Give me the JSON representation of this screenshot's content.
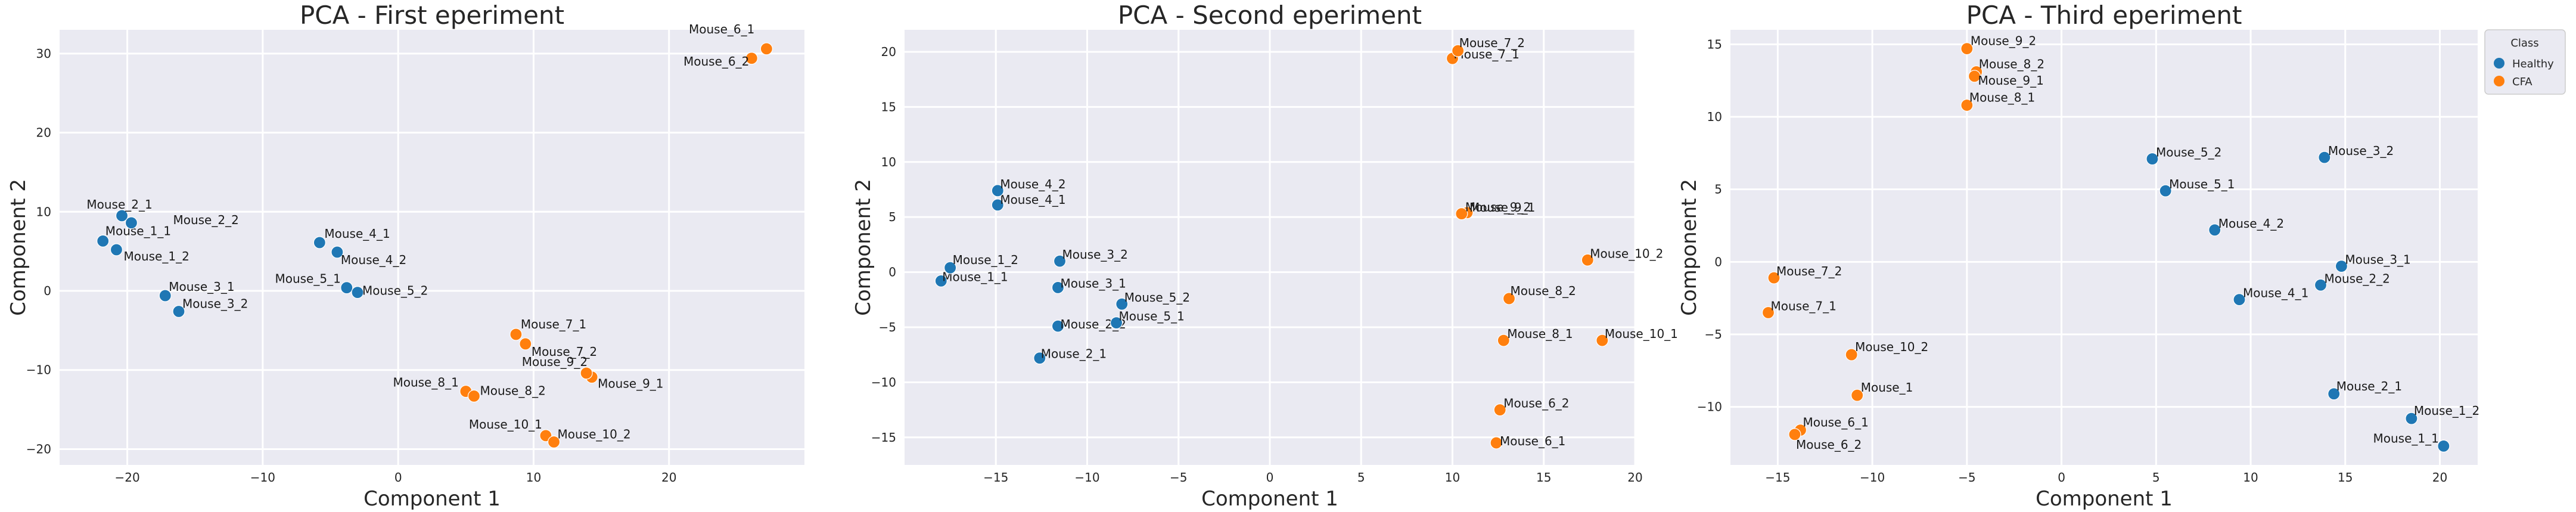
{
  "colors": {
    "Healthy": "#1f77b4",
    "CFA": "#ff7f0e"
  },
  "legend": {
    "title": "Class",
    "entries": [
      "Healthy",
      "CFA"
    ]
  },
  "chart_data": [
    {
      "type": "scatter",
      "title": "PCA - First eperiment",
      "xlabel": "Component 1",
      "ylabel": "Component 2",
      "xlim": [
        -25,
        30
      ],
      "ylim": [
        -22,
        33
      ],
      "xticks": [
        -20,
        -10,
        0,
        10,
        20
      ],
      "yticks": [
        -20,
        -10,
        0,
        10,
        20,
        30
      ],
      "points": [
        {
          "label": "Mouse_1_1",
          "x": -21.8,
          "y": 6.3,
          "class": "Healthy"
        },
        {
          "label": "Mouse_1_2",
          "x": -20.8,
          "y": 5.2,
          "class": "Healthy"
        },
        {
          "label": "Mouse_2_1",
          "x": -20.4,
          "y": 9.5,
          "class": "Healthy"
        },
        {
          "label": "Mouse_2_2",
          "x": -19.7,
          "y": 8.6,
          "class": "Healthy"
        },
        {
          "label": "Mouse_3_1",
          "x": -17.2,
          "y": -0.6,
          "class": "Healthy"
        },
        {
          "label": "Mouse_3_2",
          "x": -16.2,
          "y": -2.6,
          "class": "Healthy"
        },
        {
          "label": "Mouse_4_1",
          "x": -5.8,
          "y": 6.1,
          "class": "Healthy"
        },
        {
          "label": "Mouse_4_2",
          "x": -4.5,
          "y": 4.9,
          "class": "Healthy"
        },
        {
          "label": "Mouse_5_1",
          "x": -3.8,
          "y": 0.4,
          "class": "Healthy"
        },
        {
          "label": "Mouse_5_2",
          "x": -3.0,
          "y": -0.2,
          "class": "Healthy"
        },
        {
          "label": "Mouse_6_1",
          "x": 27.2,
          "y": 30.6,
          "class": "CFA"
        },
        {
          "label": "Mouse_6_2",
          "x": 26.1,
          "y": 29.4,
          "class": "CFA"
        },
        {
          "label": "Mouse_7_1",
          "x": 8.7,
          "y": -5.5,
          "class": "CFA"
        },
        {
          "label": "Mouse_7_2",
          "x": 9.4,
          "y": -6.7,
          "class": "CFA"
        },
        {
          "label": "Mouse_8_1",
          "x": 5.0,
          "y": -12.7,
          "class": "CFA"
        },
        {
          "label": "Mouse_8_2",
          "x": 5.6,
          "y": -13.3,
          "class": "CFA"
        },
        {
          "label": "Mouse_9_1",
          "x": 14.3,
          "y": -10.9,
          "class": "CFA"
        },
        {
          "label": "Mouse_9_2",
          "x": 13.9,
          "y": -10.4,
          "class": "CFA"
        },
        {
          "label": "Mouse_10_1",
          "x": 10.9,
          "y": -18.3,
          "class": "CFA"
        },
        {
          "label": "Mouse_10_2",
          "x": 11.5,
          "y": -19.1,
          "class": "CFA"
        }
      ]
    },
    {
      "type": "scatter",
      "title": "PCA - Second eperiment",
      "xlabel": "Component 1",
      "ylabel": "Component 2",
      "xlim": [
        -20,
        20
      ],
      "ylim": [
        -17.5,
        22
      ],
      "xticks": [
        -15,
        -10,
        -5,
        0,
        5,
        10,
        15,
        20
      ],
      "yticks": [
        -15,
        -10,
        -5,
        0,
        5,
        10,
        15,
        20
      ],
      "points": [
        {
          "label": "Mouse_1_1",
          "x": -18.0,
          "y": -0.8,
          "class": "Healthy"
        },
        {
          "label": "Mouse_1_2",
          "x": -17.5,
          "y": 0.4,
          "class": "Healthy"
        },
        {
          "label": "Mouse_2_1",
          "x": -12.6,
          "y": -7.8,
          "class": "Healthy"
        },
        {
          "label": "Mouse_2_2",
          "x": -11.6,
          "y": -4.9,
          "class": "Healthy"
        },
        {
          "label": "Mouse_3_1",
          "x": -11.6,
          "y": -1.4,
          "class": "Healthy"
        },
        {
          "label": "Mouse_3_2",
          "x": -11.5,
          "y": 1.0,
          "class": "Healthy"
        },
        {
          "label": "Mouse_4_1",
          "x": -14.9,
          "y": 6.1,
          "class": "Healthy"
        },
        {
          "label": "Mouse_4_2",
          "x": -14.9,
          "y": 7.4,
          "class": "Healthy"
        },
        {
          "label": "Mouse_5_1",
          "x": -8.4,
          "y": -4.6,
          "class": "Healthy"
        },
        {
          "label": "Mouse_5_2",
          "x": -8.1,
          "y": -2.9,
          "class": "Healthy"
        },
        {
          "label": "Mouse_6_1",
          "x": 12.4,
          "y": -15.5,
          "class": "CFA"
        },
        {
          "label": "Mouse_6_2",
          "x": 12.6,
          "y": -12.5,
          "class": "CFA"
        },
        {
          "label": "Mouse_7_1",
          "x": 10.0,
          "y": 19.4,
          "class": "CFA"
        },
        {
          "label": "Mouse_7_2",
          "x": 10.3,
          "y": 20.1,
          "class": "CFA"
        },
        {
          "label": "Mouse_8_1",
          "x": 12.8,
          "y": -6.2,
          "class": "CFA"
        },
        {
          "label": "Mouse_8_2",
          "x": 13.1,
          "y": -2.4,
          "class": "CFA"
        },
        {
          "label": "Mouse_9_1",
          "x": 10.8,
          "y": 5.4,
          "class": "CFA"
        },
        {
          "label": "Mouse_9_2",
          "x": 10.5,
          "y": 5.3,
          "class": "CFA"
        },
        {
          "label": "Mouse_10_1",
          "x": 18.2,
          "y": -6.2,
          "class": "CFA"
        },
        {
          "label": "Mouse_10_2",
          "x": 17.4,
          "y": 1.1,
          "class": "CFA"
        }
      ]
    },
    {
      "type": "scatter",
      "title": "PCA - Third eperiment",
      "xlabel": "Component 1",
      "ylabel": "Component 2",
      "xlim": [
        -17.5,
        22
      ],
      "ylim": [
        -14,
        16
      ],
      "xticks": [
        -15,
        -10,
        -5,
        0,
        5,
        10,
        15,
        20
      ],
      "yticks": [
        -10,
        -5,
        0,
        5,
        10,
        15
      ],
      "points": [
        {
          "label": "Mouse_1_1",
          "x": 20.2,
          "y": -12.7,
          "class": "Healthy"
        },
        {
          "label": "Mouse_1_2",
          "x": 18.5,
          "y": -10.8,
          "class": "Healthy"
        },
        {
          "label": "Mouse_2_1",
          "x": 14.4,
          "y": -9.1,
          "class": "Healthy"
        },
        {
          "label": "Mouse_2_2",
          "x": 13.7,
          "y": -1.6,
          "class": "Healthy"
        },
        {
          "label": "Mouse_3_1",
          "x": 14.8,
          "y": -0.3,
          "class": "Healthy"
        },
        {
          "label": "Mouse_3_2",
          "x": 13.9,
          "y": 7.2,
          "class": "Healthy"
        },
        {
          "label": "Mouse_4_1",
          "x": 9.4,
          "y": -2.6,
          "class": "Healthy"
        },
        {
          "label": "Mouse_4_2",
          "x": 8.1,
          "y": 2.2,
          "class": "Healthy"
        },
        {
          "label": "Mouse_5_1",
          "x": 5.5,
          "y": 4.9,
          "class": "Healthy"
        },
        {
          "label": "Mouse_5_2",
          "x": 4.8,
          "y": 7.1,
          "class": "Healthy"
        },
        {
          "label": "Mouse_6_1",
          "x": -13.8,
          "y": -11.6,
          "class": "CFA"
        },
        {
          "label": "Mouse_6_2",
          "x": -14.1,
          "y": -11.9,
          "class": "CFA"
        },
        {
          "label": "Mouse_7_1",
          "x": -15.5,
          "y": -3.5,
          "class": "CFA"
        },
        {
          "label": "Mouse_7_2",
          "x": -15.2,
          "y": -1.1,
          "class": "CFA"
        },
        {
          "label": "Mouse_8_1",
          "x": -5.0,
          "y": 10.8,
          "class": "CFA"
        },
        {
          "label": "Mouse_8_2",
          "x": -4.5,
          "y": 13.1,
          "class": "CFA"
        },
        {
          "label": "Mouse_9_1",
          "x": -4.6,
          "y": 12.8,
          "class": "CFA"
        },
        {
          "label": "Mouse_9_2",
          "x": -5.0,
          "y": 14.7,
          "class": "CFA"
        },
        {
          "label": "Mouse_1",
          "x": -10.8,
          "y": -9.2,
          "class": "CFA"
        },
        {
          "label": "Mouse_10_2",
          "x": -11.1,
          "y": -6.4,
          "class": "CFA"
        }
      ]
    }
  ]
}
